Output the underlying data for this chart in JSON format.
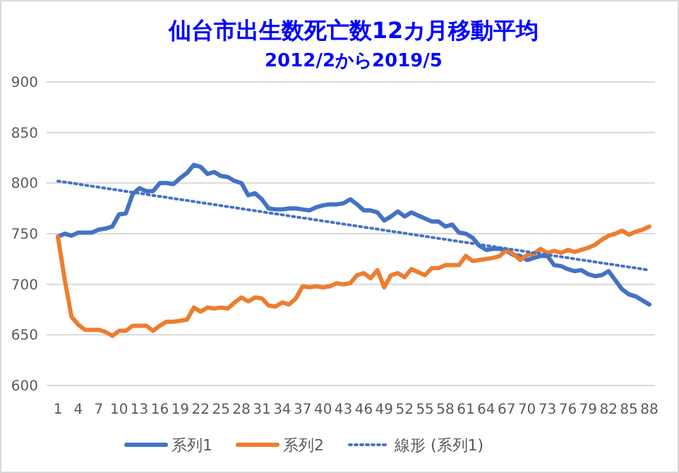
{
  "chart_data": {
    "type": "line",
    "title": "仙台市出生数死亡数12カ月移動平均",
    "subtitle": "2012/2から2019/5",
    "categories": [
      "1",
      null,
      null,
      "4",
      null,
      null,
      "7",
      null,
      null,
      "10",
      null,
      null,
      "13",
      null,
      null,
      "16",
      null,
      null,
      "19",
      null,
      null,
      "22",
      null,
      null,
      "25",
      null,
      null,
      "28",
      null,
      null,
      "31",
      null,
      null,
      "34",
      null,
      null,
      "37",
      null,
      null,
      "40",
      null,
      null,
      "43",
      null,
      null,
      "46",
      null,
      null,
      "49",
      null,
      null,
      "52",
      null,
      null,
      "55",
      null,
      null,
      "58",
      null,
      null,
      "61",
      null,
      null,
      "64",
      null,
      null,
      "67",
      null,
      null,
      "70",
      null,
      null,
      "73",
      null,
      null,
      "76",
      null,
      null,
      "79",
      null,
      null,
      "82",
      null,
      null,
      "85",
      null,
      null,
      "88"
    ],
    "series": [
      {
        "name": "系列1",
        "color": "#4472c4",
        "values": [
          747,
          750,
          748,
          751,
          751,
          751,
          754,
          755,
          757,
          769,
          770,
          789,
          795,
          792,
          792,
          800,
          800,
          799,
          805,
          810,
          818,
          816,
          809,
          811,
          807,
          806,
          802,
          800,
          788,
          790,
          784,
          775,
          774,
          774,
          775,
          775,
          774,
          773,
          776,
          778,
          779,
          779,
          780,
          784,
          779,
          773,
          773,
          771,
          763,
          767,
          772,
          767,
          771,
          768,
          765,
          762,
          762,
          757,
          759,
          751,
          750,
          746,
          738,
          734,
          735,
          735,
          733,
          729,
          728,
          724,
          726,
          728,
          728,
          719,
          718,
          715,
          713,
          714,
          710,
          708,
          709,
          713,
          704,
          695,
          690,
          688,
          684,
          680
        ]
      },
      {
        "name": "系列2",
        "color": "#ed7d31",
        "values": [
          747,
          705,
          668,
          660,
          655,
          655,
          655,
          653,
          649,
          654,
          654,
          659,
          659,
          659,
          654,
          659,
          663,
          663,
          664,
          665,
          677,
          673,
          677,
          676,
          677,
          676,
          682,
          687,
          683,
          687,
          686,
          679,
          678,
          682,
          680,
          686,
          698,
          697,
          698,
          697,
          698,
          701,
          700,
          701,
          709,
          711,
          706,
          714,
          697,
          709,
          711,
          707,
          715,
          712,
          709,
          716,
          716,
          719,
          719,
          719,
          728,
          723,
          724,
          725,
          726,
          728,
          734,
          730,
          724,
          729,
          730,
          735,
          731,
          733,
          731,
          734,
          732,
          734,
          736,
          739,
          744,
          748,
          750,
          753,
          749,
          752,
          754,
          757
        ]
      },
      {
        "name": "線形 (系列1)",
        "color": "#4472c4",
        "type": "line",
        "line_style": "dotted",
        "x": [
          "1",
          "88"
        ],
        "values": [
          802,
          714
        ]
      }
    ],
    "ylim": [
      600,
      900
    ],
    "yticks": [
      600,
      650,
      700,
      750,
      800,
      850,
      900
    ],
    "grid": "y",
    "legend": "bottom",
    "marker": "none"
  }
}
